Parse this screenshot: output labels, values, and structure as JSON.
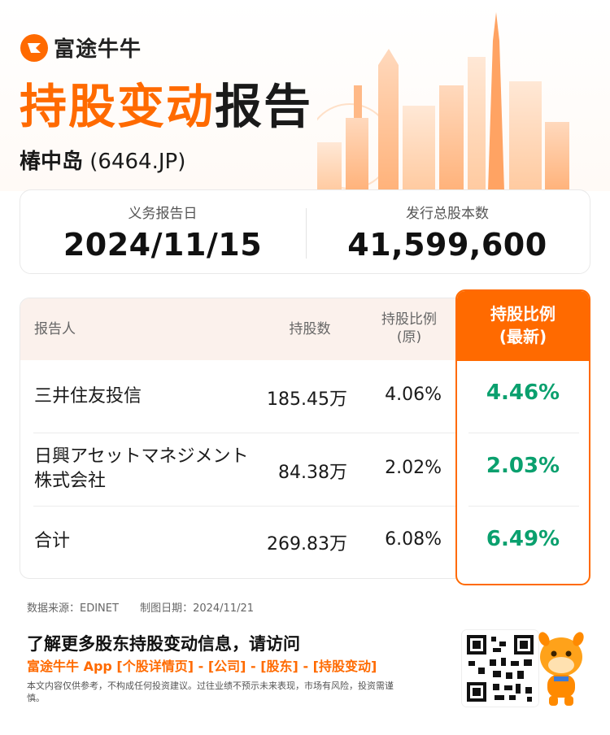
{
  "brand": {
    "name": "富途牛牛"
  },
  "header": {
    "title_highlight": "持股变动",
    "title_rest": "报告",
    "company_name": "椿中岛",
    "company_code": "(6464.JP)"
  },
  "info": {
    "report_date_label": "义务报告日",
    "report_date_value": "2024/11/15",
    "total_shares_label": "发行总股本数",
    "total_shares_value": "41,599,600"
  },
  "table": {
    "headers": {
      "reporter": "报告人",
      "shares": "持股数",
      "ratio_orig_line1": "持股比例",
      "ratio_orig_line2": "(原)",
      "ratio_new_line1": "持股比例",
      "ratio_new_line2": "(最新)"
    },
    "rows": [
      {
        "name": "三井住友投信",
        "shares": "185.45万",
        "ratio_orig": "4.06%",
        "ratio_new": "4.46%"
      },
      {
        "name": "日興アセットマネジメント株式会社",
        "shares": "84.38万",
        "ratio_orig": "2.02%",
        "ratio_new": "2.03%"
      },
      {
        "name": "合计",
        "shares": "269.83万",
        "ratio_orig": "6.08%",
        "ratio_new": "6.49%"
      }
    ]
  },
  "footer": {
    "source": "数据来源：EDINET",
    "date": "制图日期：2024/11/21",
    "cta_title": "了解更多股东持股变动信息，请访问",
    "cta_links": "富途牛牛 App [个股详情页] - [公司] - [股东] - [持股变动]",
    "disclaimer": "本文内容仅供参考，不构成任何投资建议。过往业绩不预示未来表现，市场有风险，投资需谨慎。"
  },
  "colors": {
    "accent": "#ff6a00",
    "positive": "#0aa06e",
    "header_bg": "#fbf1ec"
  },
  "icons": [
    "futu-logo-icon",
    "skyline-illustration",
    "qr-code",
    "mascot-icon"
  ]
}
